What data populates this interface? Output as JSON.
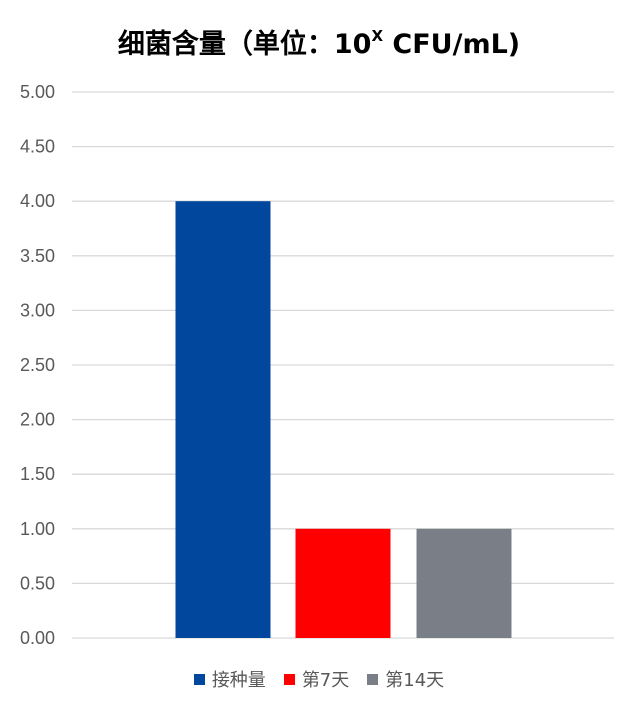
{
  "chart_data": {
    "type": "bar",
    "title": {
      "main": "细菌含量（单位：10",
      "sup": "X",
      "tail": " CFU/mL)"
    },
    "categories": [
      "接种量",
      "第7天",
      "第14天"
    ],
    "values": [
      4.0,
      1.0,
      1.0
    ],
    "colors": [
      "#00479d",
      "#ff0000",
      "#7a7f87"
    ],
    "ylim": [
      0,
      5
    ],
    "yticks": [
      "0.00",
      "0.50",
      "1.00",
      "1.50",
      "2.00",
      "2.50",
      "3.00",
      "3.50",
      "4.00",
      "4.50",
      "5.00"
    ],
    "xlabel": "",
    "ylabel": "",
    "grid": true,
    "legend_position": "bottom"
  }
}
